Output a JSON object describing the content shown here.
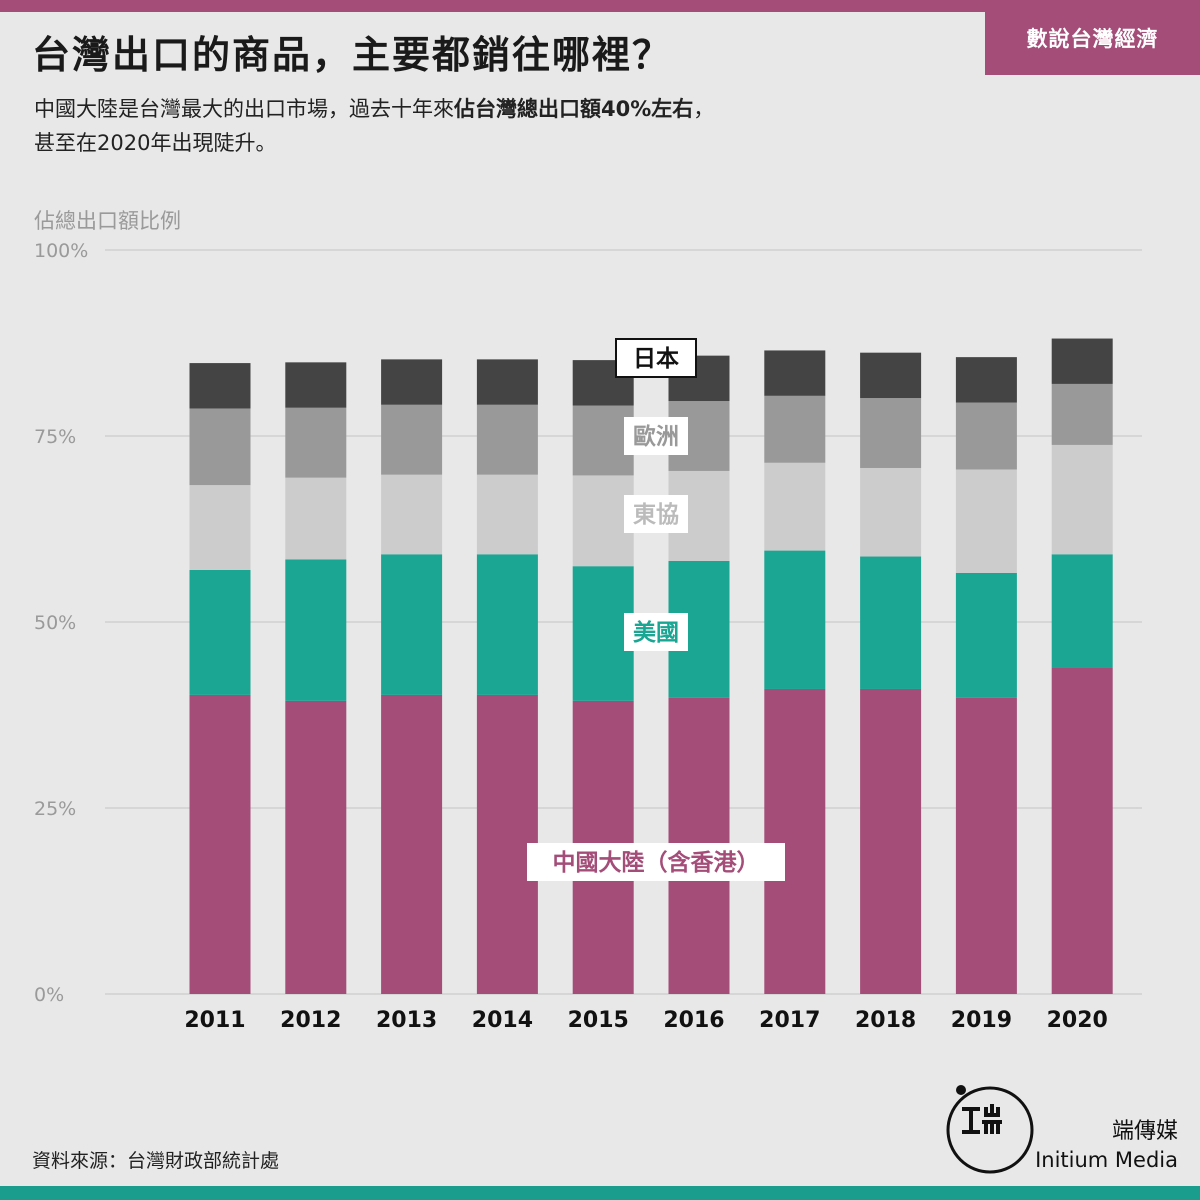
{
  "header": {
    "title": "台灣出口的商品，主要都銷往哪裡？",
    "series_tag": "數說台灣經濟",
    "subtitle_a": "中國大陸是台灣最大的出口市場，過去十年來",
    "subtitle_bold": "佔台灣總出口額40%左右",
    "subtitle_b": "，",
    "subtitle_line2": "甚至在2020年出現陡升。"
  },
  "footer": {
    "source": "資料來源：台灣財政部統計處",
    "brand_zh": "端傳媒",
    "brand_en": "Initium Media"
  },
  "colors": {
    "china": "#a34d78",
    "usa": "#1ba593",
    "asean": "#cccccc",
    "europe": "#999999",
    "japan": "#444444",
    "accent": "#a34d78",
    "footer_bar": "#1a9d8d"
  },
  "chart_data": {
    "type": "bar",
    "stacked": true,
    "title": "",
    "ylabel": "佔總出口額比例",
    "xlabel": "",
    "ylim": [
      0,
      100
    ],
    "ytick_labels": [
      "0%",
      "25%",
      "50%",
      "75%",
      "100%"
    ],
    "categories": [
      "2011",
      "2012",
      "2013",
      "2014",
      "2015",
      "2016",
      "2017",
      "2018",
      "2019",
      "2020"
    ],
    "series": [
      {
        "name": "中國大陸（含香港）",
        "values": [
          40.2,
          39.4,
          40.2,
          40.2,
          39.4,
          39.8,
          41.0,
          41.0,
          39.8,
          43.9
        ]
      },
      {
        "name": "美國",
        "values": [
          16.8,
          19.0,
          18.9,
          18.9,
          18.1,
          18.4,
          18.6,
          17.8,
          16.8,
          15.2
        ]
      },
      {
        "name": "東協",
        "values": [
          11.4,
          11.0,
          10.7,
          10.7,
          12.2,
          12.1,
          11.8,
          11.9,
          13.9,
          14.7
        ]
      },
      {
        "name": "歐洲",
        "values": [
          10.3,
          9.4,
          9.4,
          9.4,
          9.4,
          9.4,
          9.0,
          9.4,
          9.0,
          8.2
        ]
      },
      {
        "name": "日本",
        "values": [
          6.1,
          6.1,
          6.1,
          6.1,
          6.1,
          6.1,
          6.1,
          6.1,
          6.1,
          6.1
        ]
      }
    ],
    "grid": true
  }
}
